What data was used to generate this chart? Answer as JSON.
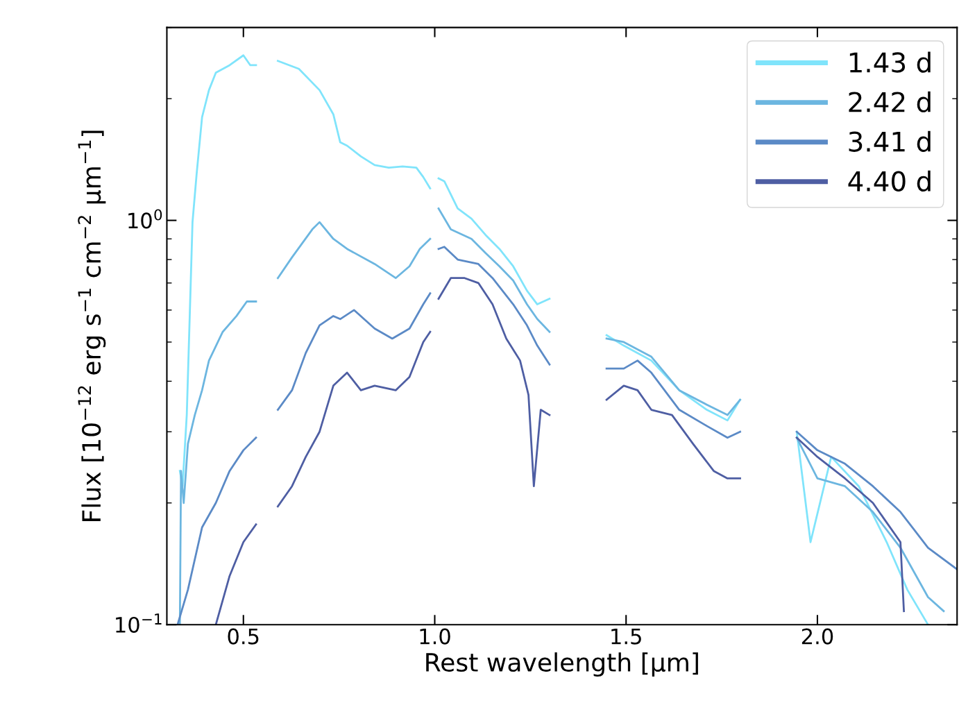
{
  "chart_data": {
    "type": "line",
    "xlabel": "Rest wavelength [µm]",
    "ylabel": "Flux [10$^{−12}$ erg s$^{−1}$ cm$^{−2}$ µm$^{−1}$]",
    "log": "y",
    "xlim": [
      0.3,
      2.365
    ],
    "ylim": [
      0.1,
      3.0
    ],
    "xticks": [
      {
        "value": 0.5,
        "label": "0.5"
      },
      {
        "value": 1.0,
        "label": "1.0"
      },
      {
        "value": 1.5,
        "label": "1.5"
      },
      {
        "value": 2.0,
        "label": "2.0"
      }
    ],
    "yticks": [
      {
        "value": 0.1,
        "label": "10$^{−1}$"
      },
      {
        "value": 1,
        "label": "10$^{0}$"
      }
    ],
    "legend": "top right",
    "marker": "none",
    "line_style": "solid",
    "grid": false,
    "series": [
      {
        "name": "1.43 d",
        "color": "#80e4fb",
        "x": [
          0.334,
          0.341,
          0.352,
          0.36,
          0.367,
          0.378,
          0.392,
          0.41,
          0.428,
          0.464,
          0.5,
          0.518,
          0.533,
          0.56,
          0.59,
          0.645,
          0.699,
          0.735,
          0.753,
          0.771,
          0.807,
          0.843,
          0.88,
          0.916,
          0.952,
          0.97,
          0.988,
          1.0,
          1.01,
          1.025,
          1.06,
          1.096,
          1.133,
          1.169,
          1.205,
          1.241,
          1.268,
          1.3,
          1.38,
          1.449,
          1.494,
          1.566,
          1.639,
          1.711,
          1.765,
          1.798,
          1.87,
          1.946,
          1.982,
          2.036,
          2.108,
          2.181,
          2.235,
          2.289
        ],
        "values": [
          0.24,
          0.22,
          0.33,
          0.59,
          0.99,
          1.31,
          1.8,
          2.1,
          2.32,
          2.42,
          2.56,
          2.42,
          2.42,
          null,
          2.48,
          2.37,
          2.1,
          1.83,
          1.56,
          1.53,
          1.44,
          1.37,
          1.35,
          1.36,
          1.35,
          1.28,
          1.2,
          null,
          1.27,
          1.25,
          1.07,
          1.01,
          0.92,
          0.85,
          0.77,
          0.67,
          0.62,
          0.64,
          null,
          0.52,
          0.49,
          0.45,
          0.38,
          0.34,
          0.32,
          0.36,
          null,
          0.3,
          0.16,
          0.26,
          0.22,
          0.16,
          0.122,
          0.1
        ]
      },
      {
        "name": "2.42 d",
        "color": "#6cb6e0",
        "x": [
          0.334,
          0.337,
          0.344,
          0.355,
          0.373,
          0.392,
          0.41,
          0.446,
          0.482,
          0.509,
          0.533,
          0.56,
          0.59,
          0.627,
          0.68,
          0.699,
          0.735,
          0.771,
          0.843,
          0.898,
          0.934,
          0.961,
          0.988,
          1.0,
          1.01,
          1.042,
          1.096,
          1.133,
          1.169,
          1.205,
          1.241,
          1.268,
          1.3,
          1.38,
          1.449,
          1.494,
          1.566,
          1.639,
          1.711,
          1.765,
          1.798,
          1.87,
          1.946,
          2.0,
          2.072,
          2.145,
          2.217,
          2.289,
          2.33
        ],
        "values": [
          0.1,
          0.24,
          0.2,
          0.28,
          0.33,
          0.38,
          0.45,
          0.53,
          0.58,
          0.63,
          0.63,
          null,
          0.72,
          0.81,
          0.95,
          0.99,
          0.9,
          0.85,
          0.78,
          0.72,
          0.77,
          0.85,
          0.9,
          null,
          1.07,
          0.95,
          0.9,
          0.83,
          0.77,
          0.71,
          0.62,
          0.57,
          0.53,
          null,
          0.51,
          0.5,
          0.46,
          0.38,
          0.35,
          0.33,
          0.36,
          null,
          0.29,
          0.23,
          0.22,
          0.19,
          0.155,
          0.117,
          0.108
        ]
      },
      {
        "name": "3.41 d",
        "color": "#5b8ac6",
        "x": [
          0.328,
          0.355,
          0.392,
          0.428,
          0.464,
          0.5,
          0.533,
          0.56,
          0.59,
          0.627,
          0.663,
          0.699,
          0.735,
          0.753,
          0.789,
          0.843,
          0.889,
          0.934,
          0.97,
          0.988,
          1.0,
          1.01,
          1.025,
          1.06,
          1.114,
          1.151,
          1.205,
          1.241,
          1.268,
          1.3,
          1.38,
          1.449,
          1.494,
          1.53,
          1.566,
          1.639,
          1.711,
          1.765,
          1.798,
          1.87,
          1.946,
          2.0,
          2.072,
          2.145,
          2.217,
          2.289,
          2.365
        ],
        "values": [
          0.1,
          0.122,
          0.174,
          0.2,
          0.24,
          0.27,
          0.29,
          null,
          0.34,
          0.38,
          0.47,
          0.55,
          0.58,
          0.57,
          0.6,
          0.54,
          0.51,
          0.54,
          0.62,
          0.66,
          null,
          0.85,
          0.86,
          0.8,
          0.78,
          0.72,
          0.62,
          0.55,
          0.49,
          0.44,
          null,
          0.43,
          0.43,
          0.45,
          0.42,
          0.34,
          0.31,
          0.29,
          0.3,
          null,
          0.3,
          0.27,
          0.25,
          0.22,
          0.19,
          0.155,
          0.137
        ]
      },
      {
        "name": "4.40 d",
        "color": "#4e5ea3",
        "x": [
          0.428,
          0.464,
          0.5,
          0.533,
          0.56,
          0.59,
          0.627,
          0.663,
          0.699,
          0.735,
          0.771,
          0.807,
          0.843,
          0.898,
          0.934,
          0.97,
          0.988,
          1.0,
          1.01,
          1.042,
          1.078,
          1.114,
          1.151,
          1.187,
          1.223,
          1.245,
          1.259,
          1.277,
          1.3,
          1.38,
          1.449,
          1.494,
          1.53,
          1.566,
          1.62,
          1.675,
          1.729,
          1.765,
          1.798,
          1.87,
          1.946,
          2.0,
          2.072,
          2.145,
          2.217,
          2.226
        ],
        "values": [
          0.1,
          0.132,
          0.16,
          0.177,
          null,
          0.196,
          0.22,
          0.26,
          0.3,
          0.39,
          0.42,
          0.38,
          0.39,
          0.38,
          0.41,
          0.5,
          0.53,
          null,
          0.64,
          0.72,
          0.72,
          0.7,
          0.62,
          0.51,
          0.45,
          0.37,
          0.22,
          0.34,
          0.33,
          null,
          0.36,
          0.39,
          0.38,
          0.34,
          0.33,
          0.28,
          0.24,
          0.23,
          0.23,
          null,
          0.29,
          0.26,
          0.23,
          0.2,
          0.16,
          0.108
        ]
      }
    ]
  }
}
